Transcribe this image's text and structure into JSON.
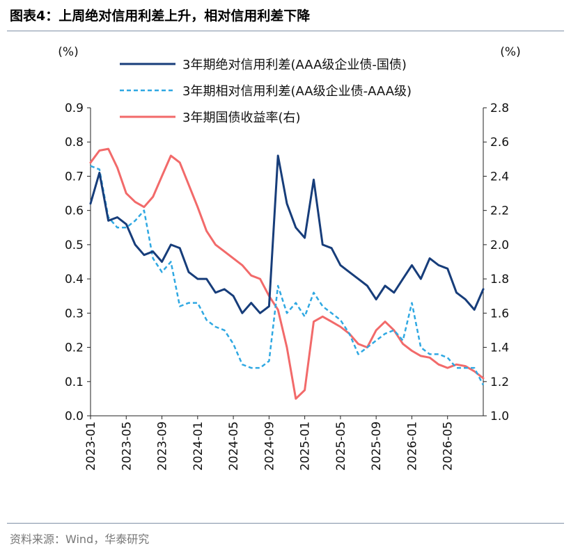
{
  "header": {
    "title": "图表4：上周绝对信用利差上升，相对信用利差下降"
  },
  "footer": {
    "source": "资料来源：Wind，华泰研究"
  },
  "chart_data": {
    "type": "line",
    "left_axis": {
      "unit": "(%)",
      "min": 0.0,
      "max": 0.9,
      "step": 0.1,
      "ticks": [
        "0.0",
        "0.1",
        "0.2",
        "0.3",
        "0.4",
        "0.5",
        "0.6",
        "0.7",
        "0.8",
        "0.9"
      ]
    },
    "right_axis": {
      "unit": "(%)",
      "min": 1.0,
      "max": 2.8,
      "step": 0.2,
      "ticks": [
        "1.0",
        "1.2",
        "1.4",
        "1.6",
        "1.8",
        "2.0",
        "2.2",
        "2.4",
        "2.6",
        "2.8"
      ]
    },
    "x_axis": {
      "min": "2023-01",
      "max": "2026-09",
      "ticks": [
        "2023-01",
        "2023-05",
        "2023-09",
        "2024-01",
        "2024-05",
        "2024-09",
        "2025-01",
        "2025-05",
        "2025-09",
        "2026-01",
        "2026-05"
      ]
    },
    "grid": false,
    "legend": "top",
    "series": [
      {
        "name": "3年期绝对信用利差(AAA级企业债-国债)",
        "axis": "left",
        "color": "#173d7a",
        "style": "solid",
        "x": [
          "2023-01",
          "2023-02",
          "2023-03",
          "2023-04",
          "2023-05",
          "2023-06",
          "2023-07",
          "2023-08",
          "2023-09",
          "2023-10",
          "2023-11",
          "2023-12",
          "2024-01",
          "2024-02",
          "2024-03",
          "2024-04",
          "2024-05",
          "2024-06",
          "2024-07",
          "2024-08",
          "2024-09",
          "2024-10",
          "2024-11",
          "2024-12",
          "2025-01",
          "2025-02",
          "2025-03",
          "2025-04",
          "2025-05",
          "2025-06",
          "2025-07",
          "2025-08",
          "2025-09",
          "2025-10",
          "2025-11",
          "2025-12",
          "2026-01",
          "2026-02",
          "2026-03",
          "2026-04",
          "2026-05",
          "2026-06",
          "2026-07",
          "2026-08",
          "2026-09"
        ],
        "values": [
          0.62,
          0.71,
          0.57,
          0.58,
          0.56,
          0.5,
          0.47,
          0.48,
          0.45,
          0.5,
          0.49,
          0.42,
          0.4,
          0.4,
          0.36,
          0.37,
          0.35,
          0.3,
          0.33,
          0.3,
          0.32,
          0.76,
          0.62,
          0.55,
          0.52,
          0.69,
          0.5,
          0.49,
          0.44,
          0.42,
          0.4,
          0.38,
          0.34,
          0.38,
          0.36,
          0.4,
          0.44,
          0.4,
          0.46,
          0.44,
          0.43,
          0.36,
          0.34,
          0.31,
          0.37
        ]
      },
      {
        "name": "3年期相对信用利差(AA级企业债-AAA级)",
        "axis": "left",
        "color": "#2fa8e2",
        "style": "dashed",
        "x": [
          "2023-01",
          "2023-02",
          "2023-03",
          "2023-04",
          "2023-05",
          "2023-06",
          "2023-07",
          "2023-08",
          "2023-09",
          "2023-10",
          "2023-11",
          "2023-12",
          "2024-01",
          "2024-02",
          "2024-03",
          "2024-04",
          "2024-05",
          "2024-06",
          "2024-07",
          "2024-08",
          "2024-09",
          "2024-10",
          "2024-11",
          "2024-12",
          "2025-01",
          "2025-02",
          "2025-03",
          "2025-04",
          "2025-05",
          "2025-06",
          "2025-07",
          "2025-08",
          "2025-09",
          "2025-10",
          "2025-11",
          "2025-12",
          "2026-01",
          "2026-02",
          "2026-03",
          "2026-04",
          "2026-05",
          "2026-06",
          "2026-07",
          "2026-08",
          "2026-09"
        ],
        "values": [
          0.73,
          0.72,
          0.58,
          0.55,
          0.55,
          0.57,
          0.6,
          0.46,
          0.42,
          0.45,
          0.32,
          0.33,
          0.33,
          0.28,
          0.26,
          0.25,
          0.21,
          0.15,
          0.14,
          0.14,
          0.16,
          0.38,
          0.3,
          0.33,
          0.29,
          0.36,
          0.32,
          0.3,
          0.28,
          0.24,
          0.18,
          0.2,
          0.22,
          0.24,
          0.25,
          0.22,
          0.33,
          0.2,
          0.18,
          0.18,
          0.17,
          0.14,
          0.14,
          0.14,
          0.09
        ]
      },
      {
        "name": "3年期国债收益率(右)",
        "axis": "right",
        "color": "#f26a6a",
        "style": "solid",
        "x": [
          "2023-01",
          "2023-02",
          "2023-03",
          "2023-04",
          "2023-05",
          "2023-06",
          "2023-07",
          "2023-08",
          "2023-09",
          "2023-10",
          "2023-11",
          "2023-12",
          "2024-01",
          "2024-02",
          "2024-03",
          "2024-04",
          "2024-05",
          "2024-06",
          "2024-07",
          "2024-08",
          "2024-09",
          "2024-10",
          "2024-11",
          "2024-12",
          "2025-01",
          "2025-02",
          "2025-03",
          "2025-04",
          "2025-05",
          "2025-06",
          "2025-07",
          "2025-08",
          "2025-09",
          "2025-10",
          "2025-11",
          "2025-12",
          "2026-01",
          "2026-02",
          "2026-03",
          "2026-04",
          "2026-05",
          "2026-06",
          "2026-07",
          "2026-08",
          "2026-09"
        ],
        "values": [
          2.48,
          2.55,
          2.56,
          2.45,
          2.3,
          2.25,
          2.22,
          2.28,
          2.4,
          2.52,
          2.48,
          2.35,
          2.22,
          2.08,
          2.0,
          1.96,
          1.92,
          1.88,
          1.82,
          1.8,
          1.7,
          1.62,
          1.4,
          1.1,
          1.15,
          1.55,
          1.58,
          1.55,
          1.52,
          1.48,
          1.42,
          1.4,
          1.5,
          1.55,
          1.5,
          1.42,
          1.38,
          1.35,
          1.34,
          1.3,
          1.28,
          1.3,
          1.29,
          1.26,
          1.22
        ]
      }
    ]
  }
}
